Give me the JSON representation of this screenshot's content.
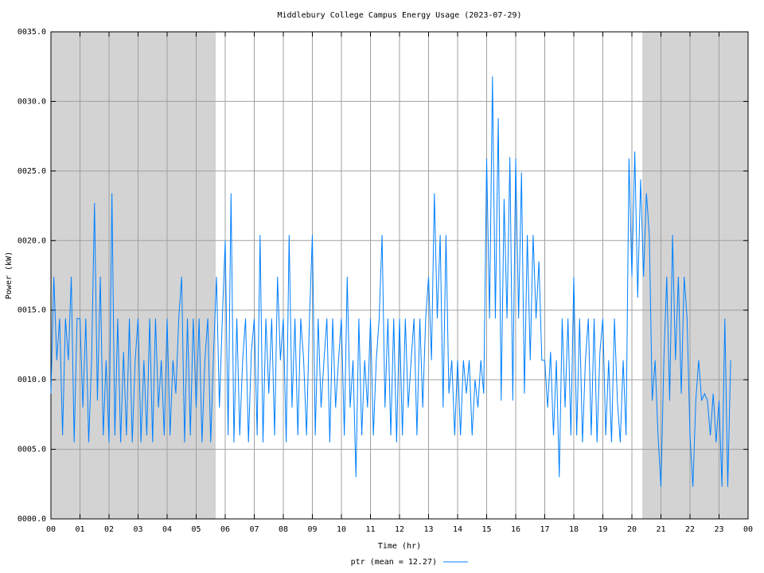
{
  "chart_data": {
    "type": "line",
    "title": "Middlebury College Campus Energy Usage (2023-07-29)",
    "x_label": "Time (hr)",
    "y_label": "Power (kW)",
    "xlim": [
      0,
      24
    ],
    "ylim": [
      0,
      35
    ],
    "xticks": [
      {
        "value": 0,
        "label": "00"
      },
      {
        "value": 1,
        "label": "01"
      },
      {
        "value": 2,
        "label": "02"
      },
      {
        "value": 3,
        "label": "03"
      },
      {
        "value": 4,
        "label": "04"
      },
      {
        "value": 5,
        "label": "05"
      },
      {
        "value": 6,
        "label": "06"
      },
      {
        "value": 7,
        "label": "07"
      },
      {
        "value": 8,
        "label": "08"
      },
      {
        "value": 9,
        "label": "09"
      },
      {
        "value": 10,
        "label": "10"
      },
      {
        "value": 11,
        "label": "11"
      },
      {
        "value": 12,
        "label": "12"
      },
      {
        "value": 13,
        "label": "13"
      },
      {
        "value": 14,
        "label": "14"
      },
      {
        "value": 15,
        "label": "15"
      },
      {
        "value": 16,
        "label": "16"
      },
      {
        "value": 17,
        "label": "17"
      },
      {
        "value": 18,
        "label": "18"
      },
      {
        "value": 19,
        "label": "19"
      },
      {
        "value": 20,
        "label": "20"
      },
      {
        "value": 21,
        "label": "21"
      },
      {
        "value": 22,
        "label": "22"
      },
      {
        "value": 23,
        "label": "23"
      },
      {
        "value": 24,
        "label": "00"
      }
    ],
    "yticks": [
      {
        "value": 0,
        "label": "0000.0"
      },
      {
        "value": 5,
        "label": "0005.0"
      },
      {
        "value": 10,
        "label": "0010.0"
      },
      {
        "value": 15,
        "label": "0015.0"
      },
      {
        "value": 20,
        "label": "0020.0"
      },
      {
        "value": 25,
        "label": "0025.0"
      },
      {
        "value": 30,
        "label": "0030.0"
      },
      {
        "value": 35,
        "label": "0035.0"
      }
    ],
    "grid": true,
    "shaded_regions": [
      [
        0,
        5.67
      ],
      [
        20.36,
        24
      ]
    ],
    "shade_color": "#d3d3d3",
    "legend": "bottom",
    "x": [
      0,
      0.1,
      0.2,
      0.3,
      0.4,
      0.5,
      0.6,
      0.7,
      0.8,
      0.9,
      1,
      1.1,
      1.2,
      1.3,
      1.4,
      1.5,
      1.6,
      1.7,
      1.8,
      1.9,
      2,
      2.1,
      2.2,
      2.3,
      2.4,
      2.5,
      2.6,
      2.7,
      2.8,
      2.9,
      3,
      3.1,
      3.2,
      3.3,
      3.4,
      3.5,
      3.6,
      3.7,
      3.8,
      3.9,
      4,
      4.1,
      4.2,
      4.3,
      4.4,
      4.5,
      4.6,
      4.7,
      4.8,
      4.9,
      5,
      5.1,
      5.2,
      5.3,
      5.4,
      5.5,
      5.6,
      5.7,
      5.8,
      5.9,
      6,
      6.1,
      6.2,
      6.3,
      6.4,
      6.5,
      6.6,
      6.7,
      6.8,
      6.9,
      7,
      7.1,
      7.2,
      7.3,
      7.4,
      7.5,
      7.6,
      7.7,
      7.8,
      7.9,
      8,
      8.1,
      8.2,
      8.3,
      8.4,
      8.5,
      8.6,
      8.7,
      8.8,
      8.9,
      9,
      9.1,
      9.2,
      9.3,
      9.4,
      9.5,
      9.6,
      9.7,
      9.8,
      9.9,
      10,
      10.1,
      10.2,
      10.3,
      10.4,
      10.5,
      10.6,
      10.7,
      10.8,
      10.9,
      11,
      11.1,
      11.2,
      11.3,
      11.4,
      11.5,
      11.6,
      11.7,
      11.8,
      11.9,
      12,
      12.1,
      12.2,
      12.3,
      12.4,
      12.5,
      12.6,
      12.7,
      12.8,
      12.9,
      13,
      13.1,
      13.2,
      13.3,
      13.4,
      13.5,
      13.6,
      13.7,
      13.8,
      13.9,
      14,
      14.1,
      14.2,
      14.3,
      14.4,
      14.5,
      14.6,
      14.7,
      14.8,
      14.9,
      15,
      15.1,
      15.2,
      15.3,
      15.4,
      15.5,
      15.6,
      15.7,
      15.8,
      15.9,
      16,
      16.1,
      16.2,
      16.3,
      16.4,
      16.5,
      16.6,
      16.7,
      16.8,
      16.9,
      17,
      17.1,
      17.2,
      17.3,
      17.4,
      17.5,
      17.6,
      17.7,
      17.8,
      17.9,
      18,
      18.1,
      18.2,
      18.3,
      18.4,
      18.5,
      18.6,
      18.7,
      18.8,
      18.9,
      19,
      19.1,
      19.2,
      19.3,
      19.4,
      19.5,
      19.6,
      19.7,
      19.8,
      19.9,
      20,
      20.1,
      20.2,
      20.3,
      20.4,
      20.5,
      20.6,
      20.7,
      20.8,
      20.9,
      21,
      21.1,
      21.2,
      21.3,
      21.4,
      21.5,
      21.6,
      21.7,
      21.8,
      21.9,
      22,
      22.1,
      22.2,
      22.3,
      22.4,
      22.5,
      22.6,
      22.7,
      22.8,
      22.9,
      23,
      23.1,
      23.2,
      23.3,
      23.4
    ],
    "series": [
      {
        "name": "ptr (mean = 12.27)",
        "color": "#0080ff",
        "values": [
          9,
          17.4,
          11.4,
          14.4,
          6,
          14.4,
          11.4,
          17.4,
          5.5,
          14.4,
          14.4,
          8,
          14.4,
          5.5,
          11.4,
          22.7,
          8.5,
          17.4,
          6,
          11.4,
          5.5,
          23.4,
          6,
          14.4,
          5.5,
          12,
          6,
          14.4,
          5.5,
          11.4,
          14.4,
          5.5,
          11.4,
          6,
          14.4,
          5.5,
          14.4,
          8,
          11.4,
          6,
          14.4,
          6,
          11.4,
          9,
          14.4,
          17.4,
          5.5,
          14.4,
          6,
          14.4,
          8,
          14.4,
          5.5,
          11.4,
          14.4,
          5.5,
          12,
          17.4,
          8,
          14.4,
          20,
          6,
          23.4,
          5.5,
          14.4,
          6,
          11.4,
          14.4,
          5.5,
          12,
          14.4,
          6,
          20.4,
          5.5,
          14.4,
          9,
          14.4,
          6,
          17.4,
          11.4,
          14.4,
          5.5,
          20.4,
          8,
          14.4,
          6,
          14.4,
          11.4,
          6,
          14.4,
          20.4,
          6,
          14.4,
          8,
          11.4,
          14.4,
          5.5,
          14.4,
          8,
          11.4,
          14.4,
          6,
          17.4,
          8,
          11.4,
          3,
          14.4,
          6,
          11.4,
          8,
          14.4,
          6,
          11.4,
          14.4,
          20.4,
          8,
          14.4,
          6,
          14.4,
          5.5,
          14.4,
          6,
          14.4,
          8,
          11.4,
          14.4,
          6,
          14.4,
          8,
          14.4,
          17.4,
          11.4,
          23.4,
          14.4,
          20.4,
          8,
          20.4,
          9,
          11.4,
          6,
          11.4,
          6,
          11.4,
          9,
          11.4,
          6,
          10,
          8,
          11.4,
          9,
          25.9,
          14.4,
          31.8,
          14.4,
          28.8,
          8.5,
          23,
          14.4,
          26,
          8.5,
          25.9,
          14.4,
          24.9,
          9,
          20.4,
          11.4,
          20.4,
          14.4,
          18.5,
          11.4,
          11.4,
          8,
          12,
          6,
          11.4,
          3,
          14.4,
          8,
          14.4,
          6,
          17.4,
          6,
          14.4,
          5.5,
          11.4,
          14.4,
          6,
          14.4,
          5.5,
          12,
          14.4,
          6,
          11.4,
          5.5,
          14.4,
          8.5,
          5.5,
          11.4,
          6,
          25.9,
          17.4,
          26.4,
          15.9,
          24.4,
          17.4,
          23.4,
          20.4,
          8.5,
          11.4,
          6,
          2.3,
          11.4,
          17.4,
          8.5,
          20.4,
          11.4,
          17.4,
          9,
          17.4,
          14.4,
          6,
          2.3,
          8.5,
          11.4,
          8.5,
          9,
          8.5,
          6,
          9,
          5.5,
          8.5,
          2.3,
          14.4,
          2.3,
          11.4
        ]
      }
    ]
  }
}
